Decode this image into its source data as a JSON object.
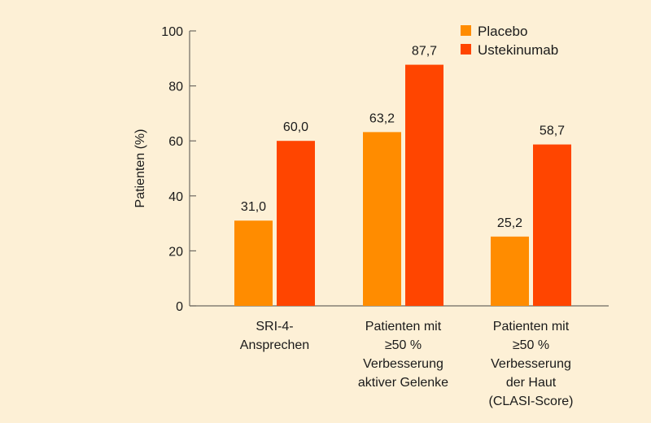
{
  "chart_data": {
    "type": "bar",
    "title": "",
    "xlabel": "",
    "ylabel": "Patienten (%)",
    "ylim": [
      0,
      100
    ],
    "yticks": [
      0,
      20,
      40,
      60,
      80,
      100
    ],
    "ytick_labels": [
      "0",
      "20",
      "40",
      "60",
      "80",
      "100"
    ],
    "grid": false,
    "legend_position": "top-right",
    "categories": [
      [
        "SRI-4-",
        "Ansprechen"
      ],
      [
        "Patienten mit",
        "≥50 %",
        "Verbesserung",
        "aktiver Gelenke"
      ],
      [
        "Patienten mit",
        "≥50 %",
        "Verbesserung",
        "der Haut",
        "(CLASI-Score)"
      ]
    ],
    "series": [
      {
        "name": "Placebo",
        "color": "#ff8c00",
        "values": [
          31.0,
          63.2,
          25.2
        ],
        "labels": [
          "31,0",
          "63,2",
          "25,2"
        ]
      },
      {
        "name": "Ustekinumab",
        "color": "#ff4500",
        "values": [
          60.0,
          87.7,
          58.7
        ],
        "labels": [
          "60,0",
          "87,7",
          "58,7"
        ]
      }
    ]
  },
  "colors": {
    "background": "#fdf0d6",
    "axis": "#6e6a62"
  }
}
